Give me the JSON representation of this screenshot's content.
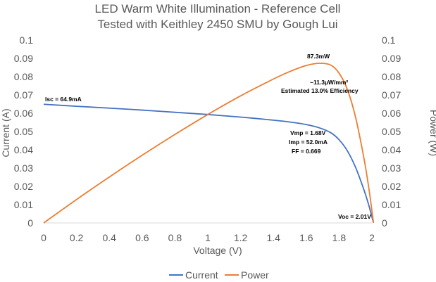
{
  "chart_data": {
    "type": "line",
    "title": [
      "LED Warm White Illumination - Reference Cell",
      "Tested with Keithley 2450 SMU by Gough Lui"
    ],
    "xlabel": "Voltage (V)",
    "ylabel_left": "Current (A)",
    "ylabel_right": "Power (W)",
    "xlim": [
      0,
      2.0
    ],
    "ylim": [
      0,
      0.1
    ],
    "y2lim": [
      0,
      0.1
    ],
    "x_ticks": [
      "0",
      "0.2",
      "0.4",
      "0.6",
      "0.8",
      "1",
      "1.2",
      "1.4",
      "1.6",
      "1.8",
      "2"
    ],
    "y_ticks": [
      "0",
      "0.01",
      "0.02",
      "0.03",
      "0.04",
      "0.05",
      "0.06",
      "0.07",
      "0.08",
      "0.09",
      "0.1"
    ],
    "y2_ticks": [
      "0",
      "0.01",
      "0.02",
      "0.03",
      "0.04",
      "0.05",
      "0.06",
      "0.07",
      "0.08",
      "0.09",
      "0.1"
    ],
    "grid": false,
    "legend_position": "bottom",
    "series": [
      {
        "name": "Current",
        "color": "#4472C4",
        "axis": "left",
        "x": [
          0,
          0.2,
          0.4,
          0.6,
          0.8,
          1.0,
          1.2,
          1.4,
          1.5,
          1.6,
          1.68,
          1.75,
          1.8,
          1.85,
          1.9,
          1.95,
          1.98,
          2.01
        ],
        "y": [
          0.0649,
          0.0638,
          0.0628,
          0.0617,
          0.0605,
          0.0593,
          0.0579,
          0.0562,
          0.0552,
          0.0538,
          0.052,
          0.0493,
          0.0455,
          0.0395,
          0.0305,
          0.0185,
          0.01,
          0.0
        ]
      },
      {
        "name": "Power",
        "color": "#ED7D31",
        "axis": "right",
        "x": [
          0,
          0.2,
          0.4,
          0.6,
          0.8,
          1.0,
          1.2,
          1.4,
          1.5,
          1.6,
          1.68,
          1.75,
          1.8,
          1.85,
          1.9,
          1.95,
          1.98,
          2.01
        ],
        "y": [
          0.0,
          0.0128,
          0.0251,
          0.037,
          0.0484,
          0.0593,
          0.0695,
          0.0787,
          0.0828,
          0.0861,
          0.0873,
          0.0863,
          0.0819,
          0.0731,
          0.058,
          0.0361,
          0.0198,
          0.0
        ]
      }
    ],
    "annotations": [
      {
        "text": "Isc = 64.9mA",
        "x": 0.0,
        "y": 0.0649
      },
      {
        "text": "87.3mW",
        "x": 1.68,
        "y": 0.0873
      },
      {
        "text": "~11.3µW/mm²",
        "x": 1.68,
        "y": 0.0873
      },
      {
        "text": "Estimated 13.0% Efficiency",
        "x": 1.68,
        "y": 0.0873
      },
      {
        "text": "Vmp = 1.68V",
        "x": 1.68,
        "y": 0.052
      },
      {
        "text": "Imp = 52.0mA",
        "x": 1.68,
        "y": 0.052
      },
      {
        "text": "FF = 0.669",
        "x": 1.68,
        "y": 0.052
      },
      {
        "text": "Voc = 2.01V",
        "x": 2.01,
        "y": 0.0
      }
    ]
  }
}
